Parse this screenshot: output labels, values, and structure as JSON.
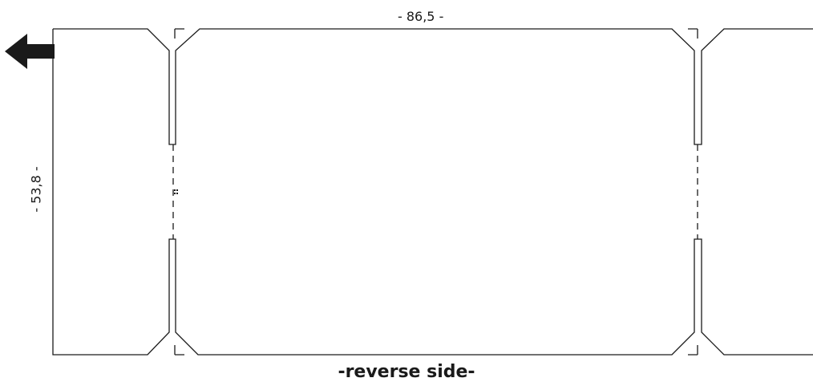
{
  "dimensions": {
    "width_label": "- 86,5 -",
    "height_label": "- 53,8 -"
  },
  "caption": "-reverse side-",
  "colors": {
    "line": "#1a1a1a",
    "arrow": "#1a1a1a",
    "background": "#ffffff"
  },
  "icons": {
    "direction_arrow": "arrow-left-icon"
  }
}
